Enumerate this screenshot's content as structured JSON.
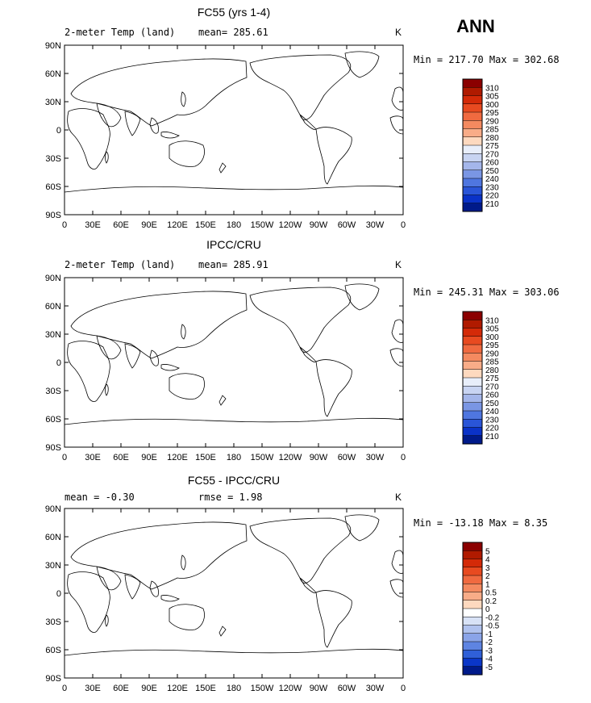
{
  "season": "ANN",
  "panels": [
    {
      "id": "model",
      "title": "FC55 (yrs 1-4)",
      "left_label": "2-meter Temp (land)",
      "center_label": "mean= 285.61",
      "right_label": "K",
      "minmax": "Min = 217.70 Max = 302.68",
      "colorbar_labels": [
        "310",
        "305",
        "300",
        "295",
        "290",
        "285",
        "280",
        "275",
        "270",
        "260",
        "250",
        "240",
        "230",
        "220",
        "210"
      ],
      "colorbar_colors": [
        "#8b0000",
        "#b01a00",
        "#d42a08",
        "#e84a20",
        "#f06a40",
        "#f48a60",
        "#f8ac88",
        "#fdd9bf",
        "#e8eefa",
        "#c8d4f2",
        "#a4b6ea",
        "#7a96e4",
        "#4f76e0",
        "#2a55d8",
        "#0a32c8",
        "#001a8a"
      ]
    },
    {
      "id": "obs",
      "title": "IPCC/CRU",
      "left_label": "2-meter Temp (land)",
      "center_label": "mean= 285.91",
      "right_label": "K",
      "minmax": "Min = 245.31 Max = 303.06",
      "colorbar_labels": [
        "310",
        "305",
        "300",
        "295",
        "290",
        "285",
        "280",
        "275",
        "270",
        "260",
        "250",
        "240",
        "230",
        "220",
        "210"
      ],
      "colorbar_colors": [
        "#8b0000",
        "#b01a00",
        "#d42a08",
        "#e84a20",
        "#f06a40",
        "#f48a60",
        "#f8ac88",
        "#fdd9bf",
        "#e8eefa",
        "#c8d4f2",
        "#a4b6ea",
        "#7a96e4",
        "#4f76e0",
        "#2a55d8",
        "#0a32c8",
        "#001a8a"
      ]
    },
    {
      "id": "diff",
      "title": "FC55 - IPCC/CRU",
      "left_label": "mean =   -0.30",
      "center_label": "rmse =    1.98",
      "right_label": "K",
      "minmax": "Min = -13.18 Max =   8.35",
      "colorbar_labels": [
        "5",
        "4",
        "3",
        "2",
        "1",
        "0.5",
        "0.2",
        "0",
        "-0.2",
        "-0.5",
        "-1",
        "-2",
        "-3",
        "-4",
        "-5"
      ],
      "colorbar_colors": [
        "#8b0000",
        "#b01a00",
        "#d42a08",
        "#e84a20",
        "#f06a40",
        "#f48a60",
        "#f8ac88",
        "#fdd9bf",
        "#ffffff",
        "#d8e2f6",
        "#b0c2ee",
        "#8aa4e8",
        "#5e84e2",
        "#3060d8",
        "#0a36c8",
        "#001a8a"
      ]
    }
  ],
  "x_ticks": [
    "0",
    "30E",
    "60E",
    "90E",
    "120E",
    "150E",
    "180",
    "150W",
    "120W",
    "90W",
    "60W",
    "30W",
    "0"
  ],
  "y_ticks": [
    "90N",
    "60N",
    "30N",
    "0",
    "30S",
    "60S",
    "90S"
  ]
}
